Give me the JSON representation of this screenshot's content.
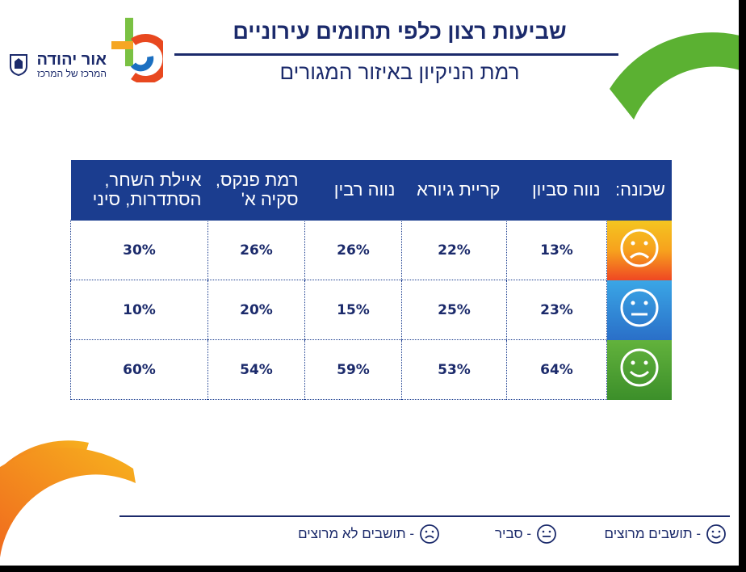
{
  "header": {
    "title": "שביעות רצון כלפי תחומים עירוניים",
    "subtitle": "רמת הניקיון באיזור המגורים"
  },
  "logo": {
    "name": "אור יהודה",
    "tagline": "המרכז של המרכז",
    "colors": [
      "#e8481f",
      "#f5a623",
      "#7ac143",
      "#1b6fc1"
    ]
  },
  "table": {
    "corner_label": "שכונה:",
    "columns": [
      "נווה סביון",
      "קריית גיורא",
      "נווה רבין",
      "רמת פנקס, סקיה א'",
      "איילת השחר, הסתדרות, סיני"
    ],
    "rows": [
      {
        "face": "sad-face-icon",
        "color": "#f39a1e",
        "values": [
          "13%",
          "22%",
          "26%",
          "26%",
          "30%"
        ]
      },
      {
        "face": "neutral-face-icon",
        "color": "#2f8fd8",
        "values": [
          "23%",
          "25%",
          "15%",
          "20%",
          "10%"
        ]
      },
      {
        "face": "happy-face-icon",
        "color": "#52a33a",
        "values": [
          "64%",
          "53%",
          "59%",
          "54%",
          "60%"
        ]
      }
    ]
  },
  "legend": {
    "happy": "- תושבים מרוצים",
    "neutral": "- סביר",
    "sad": "- תושבים לא מרוצים"
  }
}
